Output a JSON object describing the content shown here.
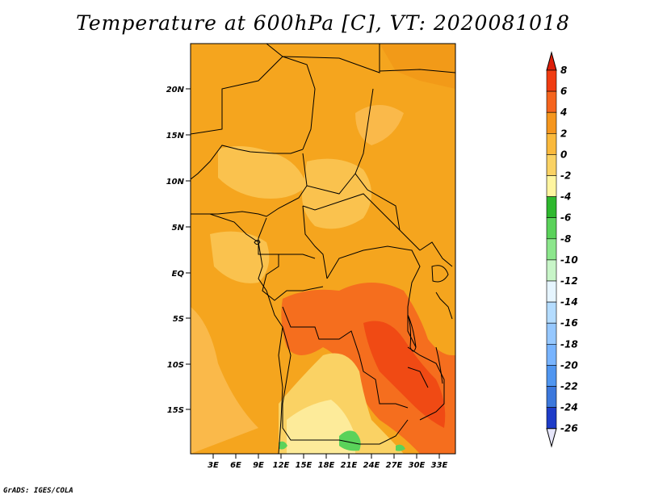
{
  "title": "Temperature at 600hPa [C], VT: 2020081018",
  "credit": "GrADS: IGES/COLA",
  "map": {
    "lat_ticks": [
      "20N",
      "15N",
      "10N",
      "5N",
      "EQ",
      "5S",
      "10S",
      "15S"
    ],
    "lon_ticks": [
      "3E",
      "6E",
      "9E",
      "12E",
      "15E",
      "18E",
      "21E",
      "24E",
      "27E",
      "30E",
      "33E"
    ]
  },
  "colorbar": {
    "levels": [
      "8",
      "6",
      "4",
      "2",
      "0",
      "-2",
      "-4",
      "-6",
      "-8",
      "-10",
      "-12",
      "-14",
      "-16",
      "-18",
      "-20",
      "-22",
      "-24",
      "-26"
    ],
    "colors": [
      "#f03c12",
      "#f5641e",
      "#f5961e",
      "#fab93c",
      "#fad264",
      "#fff5a0",
      "#2eb82e",
      "#5ad25a",
      "#8ce68c",
      "#c8f5c8",
      "#e6f5ff",
      "#b4dcff",
      "#96c8ff",
      "#78b4ff",
      "#5096f0",
      "#3c78dc",
      "#1e3cc8",
      "#0a1478",
      "#e6e6fa"
    ],
    "top_color": "#dc1e0a",
    "bottom_color": "#e6e6fa"
  },
  "colors": {
    "field_main": "#f5a51e",
    "field_warm": "#f56e1e",
    "field_cool": "#fac24e",
    "field_cold": "#fdeb9a",
    "field_green": "#5ad25a"
  }
}
